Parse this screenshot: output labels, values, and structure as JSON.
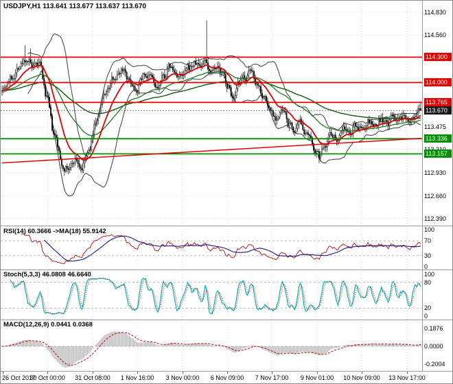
{
  "window": {
    "title": "USDJPY,H1 113.641 113.677 113.637 113.670"
  },
  "chart_data": {
    "type": "candlestick",
    "symbol": "USDJPY",
    "timeframe": "H1",
    "title": "USDJPY,H1 113.641 113.677 113.637 113.670",
    "current_price": 113.67,
    "x_labels": [
      "26 Oct 2017",
      "30 Oct 00:00",
      "31 Oct 08:00",
      "1 Nov 16:00",
      "3 Nov 00:00",
      "6 Nov 09:00",
      "7 Nov 17:00",
      "9 Nov 01:00",
      "10 Nov 09:00",
      "13 Nov 17:00"
    ],
    "price_labels": [
      {
        "text": "114.830",
        "type": "plain"
      },
      {
        "text": "114.560",
        "type": "plain"
      },
      {
        "text": "114.300",
        "type": "resistance"
      },
      {
        "text": "114.000",
        "type": "resistance"
      },
      {
        "text": "113.765",
        "type": "resistance"
      },
      {
        "text": "113.670",
        "type": "current"
      },
      {
        "text": "113.475",
        "type": "plain"
      },
      {
        "text": "113.336",
        "type": "support"
      },
      {
        "text": "113.210",
        "type": "plain"
      },
      {
        "text": "113.157",
        "type": "support"
      },
      {
        "text": "112.930",
        "type": "plain"
      },
      {
        "text": "112.660",
        "type": "plain"
      },
      {
        "text": "112.390",
        "type": "plain"
      }
    ],
    "levels": [
      {
        "price": 114.3,
        "type": "resistance"
      },
      {
        "price": 114.0,
        "type": "resistance"
      },
      {
        "price": 113.765,
        "type": "resistance"
      },
      {
        "price": 113.336,
        "type": "support"
      },
      {
        "price": 113.157,
        "type": "support"
      }
    ],
    "trendline": {
      "from_frac": 0.0,
      "from_price": 113.05,
      "to_frac": 1.0,
      "to_price": 113.34
    },
    "candles": 310,
    "price_keyframes": [
      [
        0.0,
        113.95
      ],
      [
        0.02,
        114.05
      ],
      [
        0.045,
        114.22
      ],
      [
        0.06,
        114.28
      ],
      [
        0.075,
        114.15
      ],
      [
        0.09,
        114.2
      ],
      [
        0.105,
        113.85
      ],
      [
        0.125,
        113.35
      ],
      [
        0.145,
        113.02
      ],
      [
        0.16,
        112.98
      ],
      [
        0.175,
        113.1
      ],
      [
        0.19,
        112.99
      ],
      [
        0.205,
        113.15
      ],
      [
        0.225,
        113.55
      ],
      [
        0.25,
        113.9
      ],
      [
        0.27,
        114.08
      ],
      [
        0.29,
        114.18
      ],
      [
        0.305,
        114.02
      ],
      [
        0.32,
        113.95
      ],
      [
        0.34,
        114.1
      ],
      [
        0.355,
        114.05
      ],
      [
        0.37,
        113.92
      ],
      [
        0.385,
        114.05
      ],
      [
        0.4,
        114.18
      ],
      [
        0.415,
        114.1
      ],
      [
        0.43,
        114.05
      ],
      [
        0.445,
        114.15
      ],
      [
        0.46,
        114.22
      ],
      [
        0.475,
        114.2
      ],
      [
        0.487,
        114.28
      ],
      [
        0.495,
        114.15
      ],
      [
        0.51,
        114.22
      ],
      [
        0.525,
        114.1
      ],
      [
        0.54,
        113.95
      ],
      [
        0.555,
        113.78
      ],
      [
        0.565,
        113.95
      ],
      [
        0.58,
        114.05
      ],
      [
        0.595,
        114.12
      ],
      [
        0.61,
        114.0
      ],
      [
        0.625,
        113.85
      ],
      [
        0.64,
        113.68
      ],
      [
        0.655,
        113.6
      ],
      [
        0.67,
        113.65
      ],
      [
        0.685,
        113.5
      ],
      [
        0.7,
        113.42
      ],
      [
        0.715,
        113.5
      ],
      [
        0.73,
        113.35
      ],
      [
        0.745,
        113.22
      ],
      [
        0.758,
        113.12
      ],
      [
        0.772,
        113.3
      ],
      [
        0.785,
        113.42
      ],
      [
        0.8,
        113.35
      ],
      [
        0.815,
        113.48
      ],
      [
        0.83,
        113.38
      ],
      [
        0.845,
        113.5
      ],
      [
        0.86,
        113.44
      ],
      [
        0.875,
        113.54
      ],
      [
        0.89,
        113.47
      ],
      [
        0.905,
        113.56
      ],
      [
        0.92,
        113.5
      ],
      [
        0.935,
        113.6
      ],
      [
        0.95,
        113.54
      ],
      [
        0.965,
        113.62
      ],
      [
        0.98,
        113.58
      ],
      [
        1.0,
        113.67
      ]
    ],
    "spikes": [
      [
        0.055,
        "h",
        114.44
      ],
      [
        0.067,
        "h",
        114.4
      ],
      [
        0.49,
        "h",
        114.73
      ],
      [
        0.145,
        "l",
        112.95
      ],
      [
        0.19,
        "l",
        112.96
      ],
      [
        0.758,
        "l",
        113.05
      ]
    ],
    "indicators": {
      "rsi": {
        "title": "RSI(14) 60.3666 ->MA(18) 55.9142",
        "period": 14,
        "ma_period": 18,
        "levels": [
          70,
          30
        ],
        "axis_labels": [
          {
            "text": "100",
            "v": 100
          },
          {
            "text": "70",
            "v": 70
          },
          {
            "text": "30",
            "v": 30
          },
          {
            "text": "0",
            "v": 0
          }
        ],
        "range": [
          0,
          100
        ]
      },
      "stoch": {
        "title": "Stoch(5,3,3) 46.0808 46.6640",
        "levels": [
          80,
          20
        ],
        "axis_labels": [
          {
            "text": "100",
            "v": 100
          },
          {
            "text": "80",
            "v": 80
          },
          {
            "text": "20",
            "v": 20
          },
          {
            "text": "0",
            "v": 0
          }
        ],
        "range": [
          0,
          100
        ]
      },
      "macd": {
        "title": "MACD(12,26,9) 0.0441 0.0368",
        "axis_labels": [
          "0.1876",
          "0.0000",
          "-0.2004"
        ]
      }
    },
    "colors": {
      "resistance": "#e60000",
      "support": "#009000",
      "current_box": "#1a1a1a",
      "candle_up": "#ffffff",
      "candle_down": "#000000",
      "candle_stroke": "#000000",
      "bollinger": "#3c3c3c",
      "ma_fast": "#dd0000",
      "ma_mid": "#1e7a1e",
      "ma_slow": "#0a5c0a",
      "rsi_line": "#b22222",
      "rsi_ma": "#00008b",
      "stoch_main": "#00b3b3",
      "stoch_signal": "#cc0000",
      "macd_hist": "#a8a8a8",
      "macd_signal": "#cc0000",
      "grid": "#d4d4d4",
      "indicator_level": "#b8b8b8"
    }
  }
}
